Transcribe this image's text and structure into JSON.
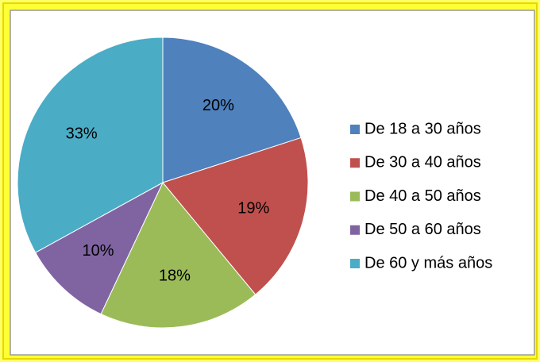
{
  "chart_data": {
    "type": "pie",
    "categories": [
      "De 18 a 30 años",
      "De 30 a 40 años",
      "De 40 a 50 años",
      "De 50 a 60 años",
      "De 60 y más años"
    ],
    "values": [
      20,
      19,
      18,
      10,
      33
    ],
    "value_labels": [
      "20%",
      "19%",
      "18%",
      "10%",
      "33%"
    ],
    "colors": [
      "#4f81bd",
      "#c0504d",
      "#9bbb59",
      "#8064a2",
      "#4bacc6"
    ],
    "legend": "right"
  }
}
